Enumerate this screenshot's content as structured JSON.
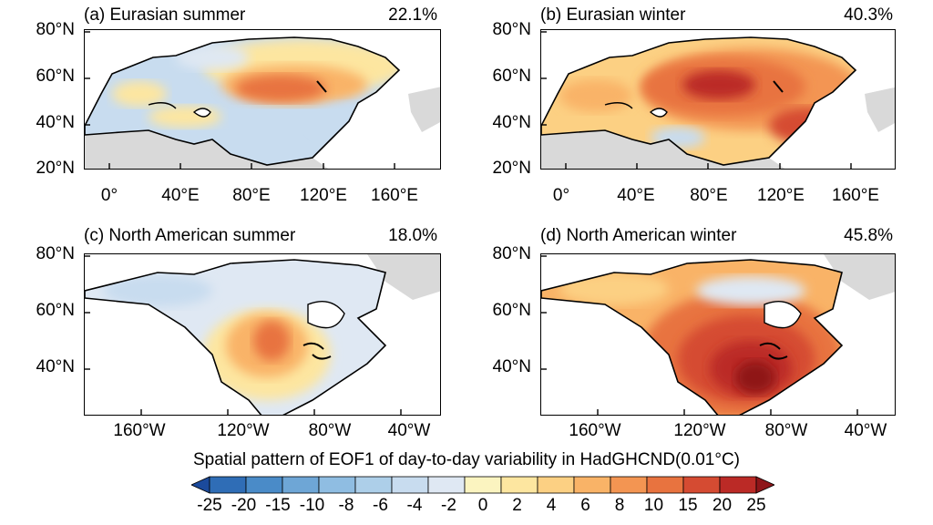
{
  "chart_data": {
    "type": "heatmap",
    "colorbar": {
      "title": "Spatial pattern of EOF1 of day-to-day variability in HadGHCND(0.01°C)",
      "levels": [
        "-25",
        "-20",
        "-15",
        "-10",
        "-8",
        "-6",
        "-4",
        "-2",
        "0",
        "2",
        "4",
        "6",
        "8",
        "10",
        "15",
        "20",
        "25"
      ],
      "colors": [
        "#1b4a9c",
        "#2f6db6",
        "#4a8bc8",
        "#6ea6d6",
        "#8fbde2",
        "#adcfe9",
        "#c8dcef",
        "#dfe8f3",
        "#fbf4c0",
        "#fde6a0",
        "#fcd083",
        "#f9b367",
        "#f39552",
        "#e8733f",
        "#d54b32",
        "#bb2a26",
        "#8f1519"
      ]
    },
    "panels": [
      {
        "id": "a",
        "title": "(a) Eurasian summer",
        "variance": "22.1%",
        "yticks": [
          "80°N",
          "60°N",
          "40°N",
          "20°N"
        ],
        "xticks": [
          "0°",
          "40°E",
          "80°E",
          "120°E",
          "160°E"
        ]
      },
      {
        "id": "b",
        "title": "(b) Eurasian winter",
        "variance": "40.3%",
        "yticks": [
          "80°N",
          "60°N",
          "40°N",
          "20°N"
        ],
        "xticks": [
          "0°",
          "40°E",
          "80°E",
          "120°E",
          "160°E"
        ]
      },
      {
        "id": "c",
        "title": "(c) North American summer",
        "variance": "18.0%",
        "yticks": [
          "80°N",
          "60°N",
          "40°N"
        ],
        "xticks": [
          "160°W",
          "120°W",
          "80°W",
          "40°W"
        ]
      },
      {
        "id": "d",
        "title": "(d) North American winter",
        "variance": "45.8%",
        "yticks": [
          "80°N",
          "60°N",
          "40°N"
        ],
        "xticks": [
          "160°W",
          "120°W",
          "80°W",
          "40°W"
        ]
      }
    ]
  }
}
